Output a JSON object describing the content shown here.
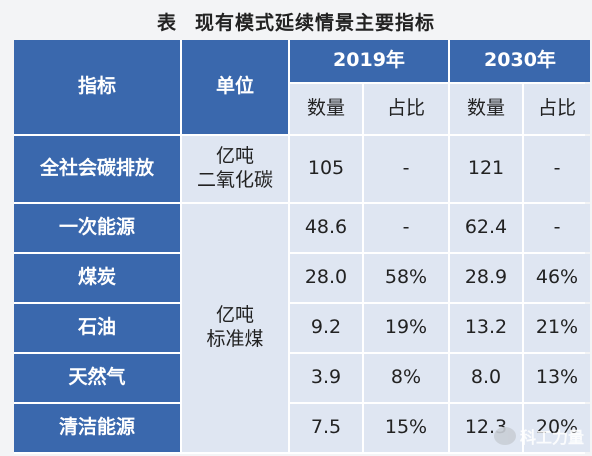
{
  "title": {
    "tag": "表",
    "text": "现有模式延续情景主要指标"
  },
  "header": {
    "indicator": "指标",
    "unit": "单位",
    "years": [
      "2019年",
      "2030年"
    ],
    "sub": [
      "数量",
      "占比",
      "数量",
      "占比"
    ]
  },
  "rows": [
    {
      "label": "全社会碳排放",
      "values": [
        "105",
        "-",
        "121",
        "-"
      ]
    },
    {
      "label": "一次能源",
      "values": [
        "48.6",
        "-",
        "62.4",
        "-"
      ]
    },
    {
      "label": "煤炭",
      "values": [
        "28.0",
        "58%",
        "28.9",
        "46%"
      ]
    },
    {
      "label": "石油",
      "values": [
        "9.2",
        "19%",
        "13.2",
        "21%"
      ]
    },
    {
      "label": "天然气",
      "values": [
        "3.9",
        "8%",
        "8.0",
        "13%"
      ]
    },
    {
      "label": "清洁能源",
      "values": [
        "7.5",
        "15%",
        "12.3",
        "20%"
      ]
    }
  ],
  "units": [
    "亿吨\n二氧化碳",
    "亿吨\n标准煤"
  ],
  "watermark": "科工力量"
}
